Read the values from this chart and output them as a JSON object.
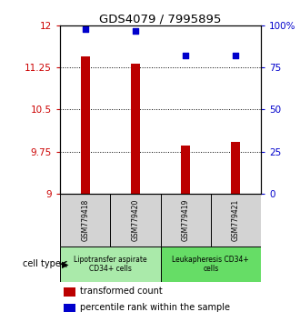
{
  "title": "GDS4079 / 7995895",
  "samples": [
    "GSM779418",
    "GSM779420",
    "GSM779419",
    "GSM779421"
  ],
  "transformed_counts": [
    11.45,
    11.32,
    9.85,
    9.92
  ],
  "percentile_ranks": [
    98,
    97,
    82,
    82
  ],
  "ylim_left": [
    9,
    12
  ],
  "ylim_right": [
    0,
    100
  ],
  "yticks_left": [
    9,
    9.75,
    10.5,
    11.25,
    12
  ],
  "yticks_right": [
    0,
    25,
    50,
    75,
    100
  ],
  "ytick_labels_left": [
    "9",
    "9.75",
    "10.5",
    "11.25",
    "12"
  ],
  "ytick_labels_right": [
    "0",
    "25",
    "50",
    "75",
    "100%"
  ],
  "hlines": [
    9.75,
    10.5,
    11.25
  ],
  "bar_color": "#bb0000",
  "dot_color": "#0000cc",
  "cell_types": [
    {
      "label": "Lipotransfer aspirate\nCD34+ cells",
      "color": "#aaeaaa",
      "samples": [
        0,
        1
      ]
    },
    {
      "label": "Leukapheresis CD34+\ncells",
      "color": "#66dd66",
      "samples": [
        2,
        3
      ]
    }
  ],
  "legend_bar_label": "transformed count",
  "legend_dot_label": "percentile rank within the sample",
  "cell_type_label": "cell type",
  "left_color": "#cc0000",
  "right_color": "#0000cc",
  "sample_box_color": "#d3d3d3",
  "background_color": "#ffffff",
  "bar_width": 0.18
}
